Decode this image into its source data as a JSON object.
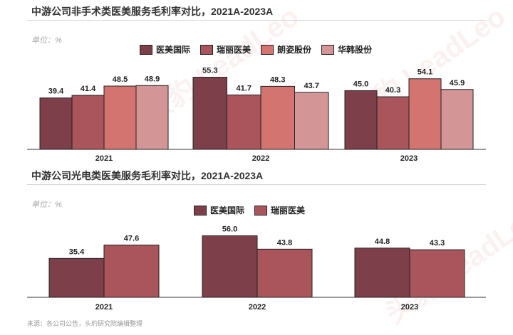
{
  "unit_label": "单位：%",
  "source_note": "来源：各公司公告，头豹研究院编辑整理",
  "watermark_text": "头豹 LeadLeo",
  "colors": {
    "医美国际": "#7d3f49",
    "瑞丽医美": "#a9555b",
    "朗姿股份": "#d47470",
    "华韩股份": "#d49596"
  },
  "chart_data": [
    {
      "type": "bar",
      "title": "中游公司非手术类医美服务毛利率对比，2021A-2023A",
      "categories": [
        "2021",
        "2022",
        "2023"
      ],
      "legend_position": "top-center",
      "series": [
        {
          "name": "医美国际",
          "values": [
            39.4,
            55.3,
            45.0
          ]
        },
        {
          "name": "瑞丽医美",
          "values": [
            41.4,
            41.7,
            40.3
          ]
        },
        {
          "name": "朗姿股份",
          "values": [
            48.5,
            48.3,
            54.1
          ]
        },
        {
          "name": "华韩股份",
          "values": [
            48.9,
            43.7,
            45.9
          ]
        }
      ],
      "value_labels": [
        [
          "39.4",
          "55.3",
          "45.0"
        ],
        [
          "41.4",
          "41.7",
          "40.3"
        ],
        [
          "48.5",
          "48.3",
          "54.1"
        ],
        [
          "48.9",
          "43.7",
          "45.9"
        ]
      ],
      "ylim": [
        0,
        60
      ],
      "grid": false
    },
    {
      "type": "bar",
      "title": "中游公司光电类医美服务毛利率对比，2021A-2023A",
      "categories": [
        "2021",
        "2022",
        "2023"
      ],
      "legend_position": "top-center",
      "series": [
        {
          "name": "医美国际",
          "values": [
            35.4,
            56.0,
            44.8
          ]
        },
        {
          "name": "瑞丽医美",
          "values": [
            47.6,
            43.8,
            43.3
          ]
        }
      ],
      "value_labels": [
        [
          "35.4",
          "56.0",
          "44.8"
        ],
        [
          "47.6",
          "43.8",
          "43.3"
        ]
      ],
      "ylim": [
        0,
        60
      ],
      "grid": false
    }
  ]
}
